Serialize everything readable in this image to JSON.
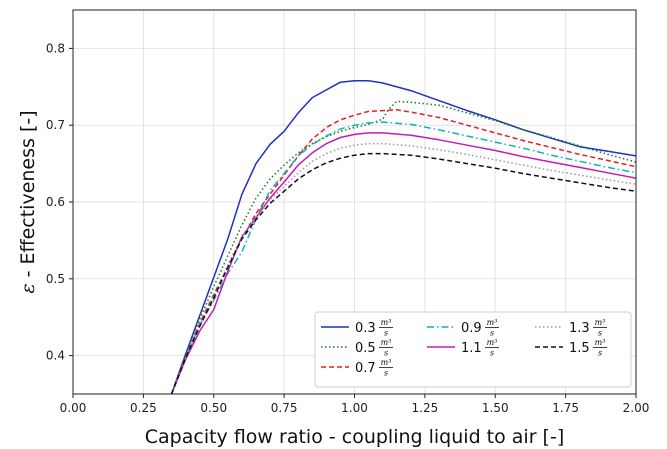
{
  "chart_data": {
    "type": "line",
    "xlabel": "Capacity flow ratio - coupling liquid to air [-]",
    "ylabel_symbol": "ε",
    "ylabel": " - Effectiveness [-]",
    "xlim": [
      0.0,
      2.0
    ],
    "ylim": [
      0.35,
      0.85
    ],
    "xticks": [
      "0.00",
      "0.25",
      "0.50",
      "0.75",
      "1.00",
      "1.25",
      "1.50",
      "1.75",
      "2.00"
    ],
    "yticks": [
      "0.4",
      "0.5",
      "0.6",
      "0.7",
      "0.8"
    ],
    "grid": true,
    "legend_position": "lower-right",
    "legend_unit_numerator": "m³",
    "legend_unit_denominator": "s",
    "series": [
      {
        "name": "0.3",
        "color": "#1f2fc8",
        "dash": "solid",
        "x": [
          0.35,
          0.4,
          0.45,
          0.5,
          0.55,
          0.6,
          0.65,
          0.7,
          0.75,
          0.8,
          0.85,
          0.9,
          0.95,
          1.0,
          1.05,
          1.1,
          1.2,
          1.3,
          1.4,
          1.5,
          1.6,
          1.7,
          1.8,
          1.9,
          2.0
        ],
        "y": [
          0.35,
          0.402,
          0.452,
          0.502,
          0.552,
          0.61,
          0.65,
          0.675,
          0.692,
          0.716,
          0.736,
          0.746,
          0.756,
          0.758,
          0.758,
          0.755,
          0.745,
          0.732,
          0.719,
          0.707,
          0.694,
          0.683,
          0.672,
          0.666,
          0.66
        ]
      },
      {
        "name": "0.5",
        "color": "#1a7a1a",
        "dash": "dotted",
        "x": [
          0.35,
          0.4,
          0.45,
          0.5,
          0.55,
          0.6,
          0.65,
          0.7,
          0.75,
          0.8,
          0.85,
          0.9,
          0.95,
          1.0,
          1.05,
          1.1,
          1.12,
          1.15,
          1.2,
          1.3,
          1.4,
          1.5,
          1.6,
          1.7,
          1.8,
          1.9,
          2.0
        ],
        "y": [
          0.35,
          0.4,
          0.447,
          0.49,
          0.53,
          0.57,
          0.605,
          0.63,
          0.648,
          0.664,
          0.676,
          0.685,
          0.692,
          0.697,
          0.701,
          0.708,
          0.72,
          0.731,
          0.73,
          0.726,
          0.716,
          0.706,
          0.694,
          0.684,
          0.673,
          0.662,
          0.652
        ]
      },
      {
        "name": "0.7",
        "color": "#e81e1e",
        "dash": "dashed",
        "x": [
          0.35,
          0.4,
          0.45,
          0.5,
          0.55,
          0.6,
          0.65,
          0.7,
          0.75,
          0.8,
          0.85,
          0.9,
          0.95,
          1.0,
          1.05,
          1.1,
          1.15,
          1.2,
          1.3,
          1.4,
          1.5,
          1.6,
          1.7,
          1.8,
          1.9,
          2.0
        ],
        "y": [
          0.35,
          0.398,
          0.442,
          0.48,
          0.515,
          0.552,
          0.585,
          0.61,
          0.635,
          0.66,
          0.682,
          0.697,
          0.707,
          0.713,
          0.718,
          0.719,
          0.72,
          0.717,
          0.71,
          0.7,
          0.69,
          0.68,
          0.671,
          0.662,
          0.654,
          0.646
        ]
      },
      {
        "name": "0.9",
        "color": "#0fb0b8",
        "dash": "dashdot",
        "x": [
          0.35,
          0.4,
          0.45,
          0.5,
          0.55,
          0.6,
          0.65,
          0.7,
          0.75,
          0.8,
          0.85,
          0.9,
          0.95,
          1.0,
          1.05,
          1.1,
          1.2,
          1.3,
          1.4,
          1.5,
          1.6,
          1.7,
          1.8,
          1.9,
          2.0
        ],
        "y": [
          0.35,
          0.397,
          0.44,
          0.472,
          0.507,
          0.535,
          0.578,
          0.615,
          0.637,
          0.66,
          0.675,
          0.686,
          0.695,
          0.7,
          0.703,
          0.704,
          0.701,
          0.694,
          0.686,
          0.678,
          0.67,
          0.661,
          0.653,
          0.645,
          0.638
        ]
      },
      {
        "name": "1.1",
        "color": "#c41ab8",
        "dash": "solid",
        "x": [
          0.35,
          0.4,
          0.45,
          0.5,
          0.55,
          0.6,
          0.65,
          0.7,
          0.75,
          0.8,
          0.85,
          0.9,
          0.95,
          1.0,
          1.05,
          1.1,
          1.2,
          1.3,
          1.4,
          1.5,
          1.6,
          1.7,
          1.8,
          1.9,
          2.0
        ],
        "y": [
          0.35,
          0.395,
          0.432,
          0.46,
          0.51,
          0.555,
          0.58,
          0.605,
          0.626,
          0.648,
          0.664,
          0.676,
          0.684,
          0.688,
          0.69,
          0.69,
          0.687,
          0.681,
          0.674,
          0.667,
          0.659,
          0.652,
          0.645,
          0.638,
          0.631
        ]
      },
      {
        "name": "1.3",
        "color": "#9a9a9a",
        "dash": "dotted",
        "x": [
          0.35,
          0.4,
          0.45,
          0.5,
          0.55,
          0.6,
          0.65,
          0.7,
          0.75,
          0.8,
          0.85,
          0.9,
          0.95,
          1.0,
          1.05,
          1.1,
          1.2,
          1.3,
          1.4,
          1.5,
          1.6,
          1.7,
          1.8,
          1.9,
          2.0
        ],
        "y": [
          0.35,
          0.398,
          0.44,
          0.478,
          0.518,
          0.555,
          0.58,
          0.603,
          0.62,
          0.638,
          0.653,
          0.663,
          0.67,
          0.674,
          0.676,
          0.676,
          0.673,
          0.668,
          0.662,
          0.655,
          0.648,
          0.641,
          0.635,
          0.629,
          0.623
        ]
      },
      {
        "name": "1.5",
        "color": "#111111",
        "dash": "dashed",
        "x": [
          0.35,
          0.4,
          0.45,
          0.5,
          0.55,
          0.6,
          0.65,
          0.7,
          0.75,
          0.8,
          0.85,
          0.9,
          0.95,
          1.0,
          1.05,
          1.1,
          1.2,
          1.3,
          1.4,
          1.5,
          1.6,
          1.7,
          1.8,
          1.9,
          2.0
        ],
        "y": [
          0.35,
          0.397,
          0.438,
          0.475,
          0.515,
          0.552,
          0.577,
          0.598,
          0.614,
          0.63,
          0.642,
          0.651,
          0.657,
          0.661,
          0.663,
          0.663,
          0.661,
          0.656,
          0.65,
          0.644,
          0.637,
          0.631,
          0.625,
          0.619,
          0.614
        ]
      }
    ]
  }
}
